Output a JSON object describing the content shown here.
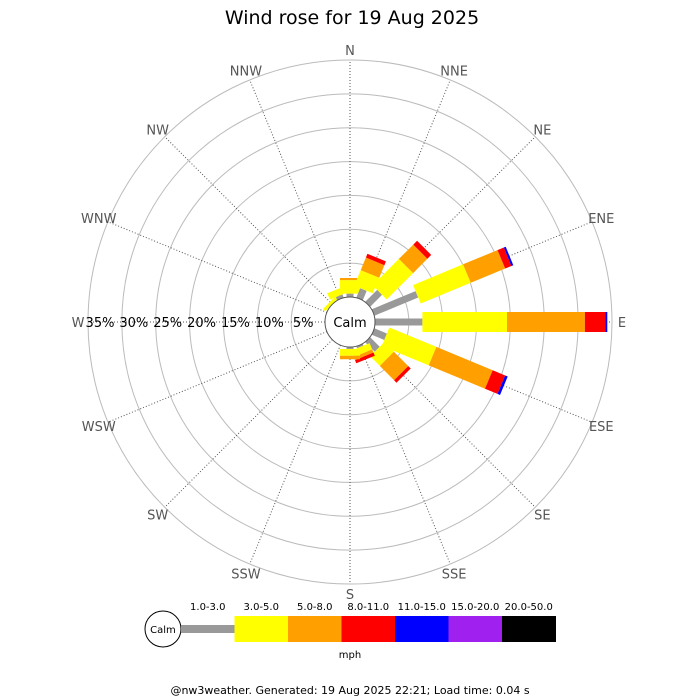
{
  "title": "Wind rose for 19 Aug 2025",
  "footer": "@nw3weather.  Generated: 19 Aug 2025 22:21; Load time: 0.04 s",
  "calm_label": "Calm",
  "legend_unit": "mph",
  "chart_data": {
    "type": "wind-rose",
    "title": "Wind rose for 19 Aug 2025",
    "directions": [
      "N",
      "NNE",
      "NE",
      "ENE",
      "E",
      "ESE",
      "SE",
      "SSE",
      "S",
      "SSW",
      "SW",
      "WSW",
      "W",
      "WNW",
      "NW",
      "NNW"
    ],
    "radial_axis": {
      "unit": "%",
      "max": 35,
      "rings": [
        5,
        10,
        15,
        20,
        25,
        30,
        35
      ],
      "ring_labels": [
        "5%",
        "10%",
        "15%",
        "20%",
        "25%",
        "30%",
        "35%"
      ]
    },
    "speed_bins": [
      {
        "label": "1.0-3.0",
        "color": "#999999"
      },
      {
        "label": "3.0-5.0",
        "color": "#ffff00"
      },
      {
        "label": "5.0-8.0",
        "color": "#ffa000"
      },
      {
        "label": "8.0-11.0",
        "color": "#ff0000"
      },
      {
        "label": "11.0-15.0",
        "color": "#0000ff"
      },
      {
        "label": "15.0-20.0",
        "color": "#a020f0"
      },
      {
        "label": "20.0-50.0",
        "color": "#000000"
      }
    ],
    "speed_unit": "mph",
    "frequencies_percent": {
      "N": [
        0.5,
        2.0,
        0.3,
        0.0,
        0.0,
        0.0,
        0.0
      ],
      "NNE": [
        1.5,
        2.5,
        2.0,
        0.6,
        0.0,
        0.0,
        0.0
      ],
      "NE": [
        2.5,
        5.5,
        3.0,
        0.8,
        0.0,
        0.0,
        0.0
      ],
      "ENE": [
        7.0,
        8.0,
        5.5,
        1.0,
        0.3,
        0.0,
        0.0
      ],
      "E": [
        7.0,
        12.5,
        11.5,
        3.0,
        0.3,
        0.0,
        0.0
      ],
      "ESE": [
        2.0,
        7.5,
        9.0,
        2.0,
        0.4,
        0.0,
        0.0
      ],
      "SE": [
        2.0,
        2.0,
        3.0,
        0.5,
        0.0,
        0.0,
        0.0
      ],
      "SSE": [
        0.3,
        1.0,
        0.5,
        0.5,
        0.0,
        0.0,
        0.0
      ],
      "S": [
        0.3,
        1.0,
        0.5,
        0.0,
        0.0,
        0.0,
        0.0
      ],
      "SSW": [
        0.0,
        0.0,
        0.0,
        0.0,
        0.0,
        0.0,
        0.0
      ],
      "SW": [
        0.0,
        0.0,
        0.0,
        0.0,
        0.0,
        0.0,
        0.0
      ],
      "WSW": [
        0.0,
        0.0,
        0.0,
        0.0,
        0.0,
        0.0,
        0.0
      ],
      "W": [
        0.0,
        0.0,
        0.0,
        0.0,
        0.0,
        0.0,
        0.0
      ],
      "WNW": [
        0.0,
        0.0,
        0.0,
        0.0,
        0.0,
        0.0,
        0.0
      ],
      "NW": [
        0.0,
        0.5,
        0.0,
        0.0,
        0.0,
        0.0,
        0.0
      ],
      "NNW": [
        0.5,
        1.0,
        0.0,
        0.0,
        0.0,
        0.0,
        0.0
      ]
    },
    "legend_placement": "bottom"
  }
}
